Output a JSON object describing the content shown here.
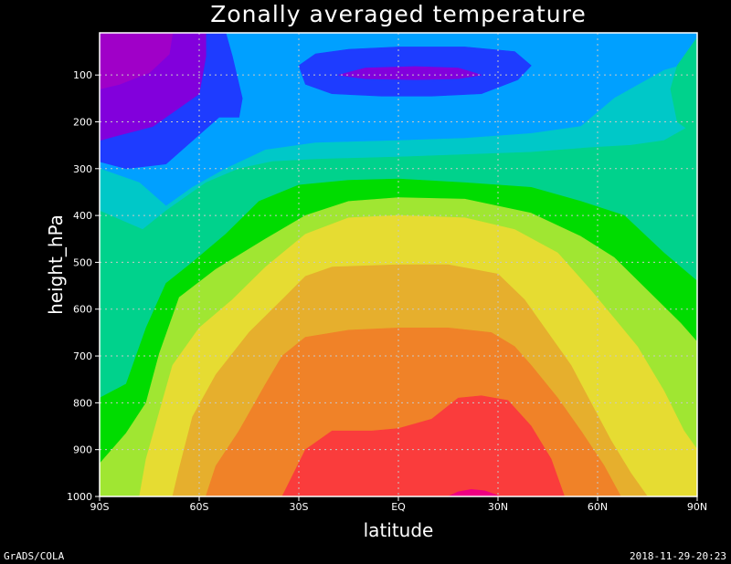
{
  "chart_data": {
    "type": "heatmap",
    "title": "Zonally averaged temperature",
    "xlabel": "latitude",
    "ylabel": "height_hPa",
    "x_ticks": [
      "90S",
      "60S",
      "30S",
      "EQ",
      "30N",
      "60N",
      "90N"
    ],
    "y_ticks": [
      "100",
      "200",
      "300",
      "400",
      "500",
      "600",
      "700",
      "800",
      "900",
      "1000"
    ],
    "xlim": [
      -90,
      90
    ],
    "ylim": [
      1000,
      10
    ],
    "y_reversed": true,
    "grid": true,
    "colormap": [
      "#a000c8",
      "#8200dc",
      "#1e3cff",
      "#00a0ff",
      "#00c8c8",
      "#00d28c",
      "#00dc00",
      "#a0e632",
      "#e6dc32",
      "#e6af2d",
      "#f08228",
      "#fa3c3c",
      "#f00082"
    ],
    "contours": [
      {
        "level": 1,
        "color": "#00a0ff",
        "points": [
          [
            -90,
            10
          ],
          [
            90,
            10
          ],
          [
            90,
            1000
          ],
          [
            -90,
            1000
          ]
        ]
      },
      {
        "level": 2,
        "color": "#00c8c8",
        "points": [
          [
            -90,
            300
          ],
          [
            -78,
            330
          ],
          [
            -70,
            380
          ],
          [
            -62,
            340
          ],
          [
            -52,
            300
          ],
          [
            -40,
            260
          ],
          [
            -25,
            245
          ],
          [
            0,
            240
          ],
          [
            20,
            235
          ],
          [
            40,
            225
          ],
          [
            55,
            210
          ],
          [
            65,
            150
          ],
          [
            80,
            90
          ],
          [
            90,
            70
          ],
          [
            90,
            1000
          ],
          [
            -90,
            1000
          ]
        ]
      },
      {
        "level": 3,
        "color": "#00d28c",
        "points": [
          [
            -90,
            390
          ],
          [
            -82,
            415
          ],
          [
            -77,
            430
          ],
          [
            -70,
            390
          ],
          [
            -58,
            330
          ],
          [
            -48,
            300
          ],
          [
            -38,
            285
          ],
          [
            -25,
            280
          ],
          [
            0,
            275
          ],
          [
            20,
            270
          ],
          [
            40,
            265
          ],
          [
            58,
            255
          ],
          [
            70,
            250
          ],
          [
            80,
            240
          ],
          [
            90,
            200
          ],
          [
            90,
            1000
          ],
          [
            -90,
            1000
          ]
        ]
      },
      {
        "level": 4,
        "color": "#00dc00",
        "points": [
          [
            -90,
            790
          ],
          [
            -82,
            760
          ],
          [
            -76,
            640
          ],
          [
            -70,
            545
          ],
          [
            -62,
            500
          ],
          [
            -52,
            440
          ],
          [
            -42,
            370
          ],
          [
            -30,
            335
          ],
          [
            -15,
            325
          ],
          [
            0,
            322
          ],
          [
            20,
            330
          ],
          [
            40,
            340
          ],
          [
            55,
            370
          ],
          [
            68,
            400
          ],
          [
            80,
            480
          ],
          [
            90,
            540
          ],
          [
            90,
            1000
          ],
          [
            -90,
            1000
          ]
        ]
      },
      {
        "level": 5,
        "color": "#a0e632",
        "points": [
          [
            -90,
            930
          ],
          [
            -82,
            865
          ],
          [
            -76,
            800
          ],
          [
            -72,
            695
          ],
          [
            -66,
            575
          ],
          [
            -55,
            515
          ],
          [
            -40,
            450
          ],
          [
            -28,
            400
          ],
          [
            -15,
            370
          ],
          [
            0,
            362
          ],
          [
            20,
            365
          ],
          [
            40,
            395
          ],
          [
            55,
            445
          ],
          [
            65,
            490
          ],
          [
            75,
            560
          ],
          [
            85,
            630
          ],
          [
            90,
            670
          ],
          [
            90,
            1000
          ],
          [
            -90,
            1000
          ]
        ]
      },
      {
        "level": 6,
        "color": "#e6dc32",
        "points": [
          [
            -78,
            1000
          ],
          [
            -76,
            920
          ],
          [
            -72,
            820
          ],
          [
            -68,
            720
          ],
          [
            -60,
            640
          ],
          [
            -50,
            580
          ],
          [
            -40,
            510
          ],
          [
            -28,
            440
          ],
          [
            -15,
            405
          ],
          [
            0,
            400
          ],
          [
            20,
            405
          ],
          [
            35,
            430
          ],
          [
            48,
            480
          ],
          [
            58,
            560
          ],
          [
            65,
            620
          ],
          [
            72,
            680
          ],
          [
            80,
            775
          ],
          [
            86,
            860
          ],
          [
            90,
            900
          ],
          [
            90,
            1000
          ]
        ]
      },
      {
        "level": 7,
        "color": "#e6af2d",
        "points": [
          [
            -68,
            1000
          ],
          [
            -66,
            940
          ],
          [
            -62,
            830
          ],
          [
            -55,
            740
          ],
          [
            -45,
            650
          ],
          [
            -35,
            580
          ],
          [
            -28,
            530
          ],
          [
            -20,
            510
          ],
          [
            0,
            505
          ],
          [
            15,
            505
          ],
          [
            30,
            525
          ],
          [
            38,
            580
          ],
          [
            45,
            650
          ],
          [
            52,
            720
          ],
          [
            58,
            800
          ],
          [
            64,
            880
          ],
          [
            70,
            950
          ],
          [
            75,
            1000
          ]
        ]
      },
      {
        "level": 8,
        "color": "#f08228",
        "points": [
          [
            -58,
            1000
          ],
          [
            -55,
            935
          ],
          [
            -48,
            860
          ],
          [
            -40,
            760
          ],
          [
            -35,
            700
          ],
          [
            -28,
            660
          ],
          [
            -15,
            645
          ],
          [
            0,
            640
          ],
          [
            15,
            640
          ],
          [
            28,
            650
          ],
          [
            35,
            680
          ],
          [
            40,
            720
          ],
          [
            48,
            790
          ],
          [
            55,
            860
          ],
          [
            62,
            935
          ],
          [
            67,
            1000
          ]
        ]
      },
      {
        "level": 9,
        "color": "#fa3c3c",
        "points": [
          [
            -35,
            1000
          ],
          [
            -28,
            900
          ],
          [
            -20,
            860
          ],
          [
            -8,
            860
          ],
          [
            0,
            855
          ],
          [
            10,
            835
          ],
          [
            18,
            790
          ],
          [
            25,
            785
          ],
          [
            33,
            795
          ],
          [
            40,
            850
          ],
          [
            46,
            920
          ],
          [
            50,
            1000
          ]
        ]
      },
      {
        "level": 10,
        "color": "#f00082",
        "points": [
          [
            15,
            1000
          ],
          [
            18,
            990
          ],
          [
            22,
            985
          ],
          [
            26,
            988
          ],
          [
            30,
            998
          ],
          [
            31,
            1000
          ]
        ]
      },
      {
        "level": 11,
        "color": "#1e3cff",
        "points": [
          [
            -90,
            10
          ],
          [
            -52,
            10
          ],
          [
            -50,
            60
          ],
          [
            -47,
            150
          ],
          [
            -48,
            190
          ],
          [
            -54,
            190
          ],
          [
            -62,
            240
          ],
          [
            -70,
            290
          ],
          [
            -82,
            300
          ],
          [
            -90,
            285
          ]
        ]
      },
      {
        "level": 12,
        "color": "#8200dc",
        "points": [
          [
            -90,
            10
          ],
          [
            -58,
            10
          ],
          [
            -58,
            60
          ],
          [
            -60,
            140
          ],
          [
            -66,
            170
          ],
          [
            -74,
            210
          ],
          [
            -85,
            230
          ],
          [
            -90,
            240
          ]
        ]
      },
      {
        "level": 13,
        "color": "#a000c8",
        "points": [
          [
            -90,
            10
          ],
          [
            -68,
            10
          ],
          [
            -69,
            55
          ],
          [
            -75,
            95
          ],
          [
            -84,
            120
          ],
          [
            -90,
            130
          ]
        ]
      },
      {
        "level": 14,
        "color": "#1e3cff",
        "points": [
          [
            -30,
            80
          ],
          [
            -25,
            55
          ],
          [
            -15,
            45
          ],
          [
            0,
            40
          ],
          [
            20,
            40
          ],
          [
            35,
            50
          ],
          [
            40,
            80
          ],
          [
            36,
            110
          ],
          [
            25,
            140
          ],
          [
            10,
            145
          ],
          [
            -5,
            145
          ],
          [
            -20,
            140
          ],
          [
            -28,
            120
          ]
        ]
      },
      {
        "level": 15,
        "color": "#8200dc",
        "points": [
          [
            -18,
            100
          ],
          [
            -10,
            85
          ],
          [
            5,
            82
          ],
          [
            18,
            85
          ],
          [
            25,
            100
          ],
          [
            18,
            108
          ],
          [
            5,
            110
          ],
          [
            -10,
            108
          ]
        ]
      },
      {
        "level": 16,
        "color": "#00d28c",
        "points": [
          [
            90,
            20
          ],
          [
            84,
            80
          ],
          [
            82,
            130
          ],
          [
            84,
            200
          ],
          [
            90,
            230
          ]
        ]
      }
    ]
  },
  "footer": {
    "left": "GrADS/COLA",
    "right": "2018-11-29-20:23"
  }
}
